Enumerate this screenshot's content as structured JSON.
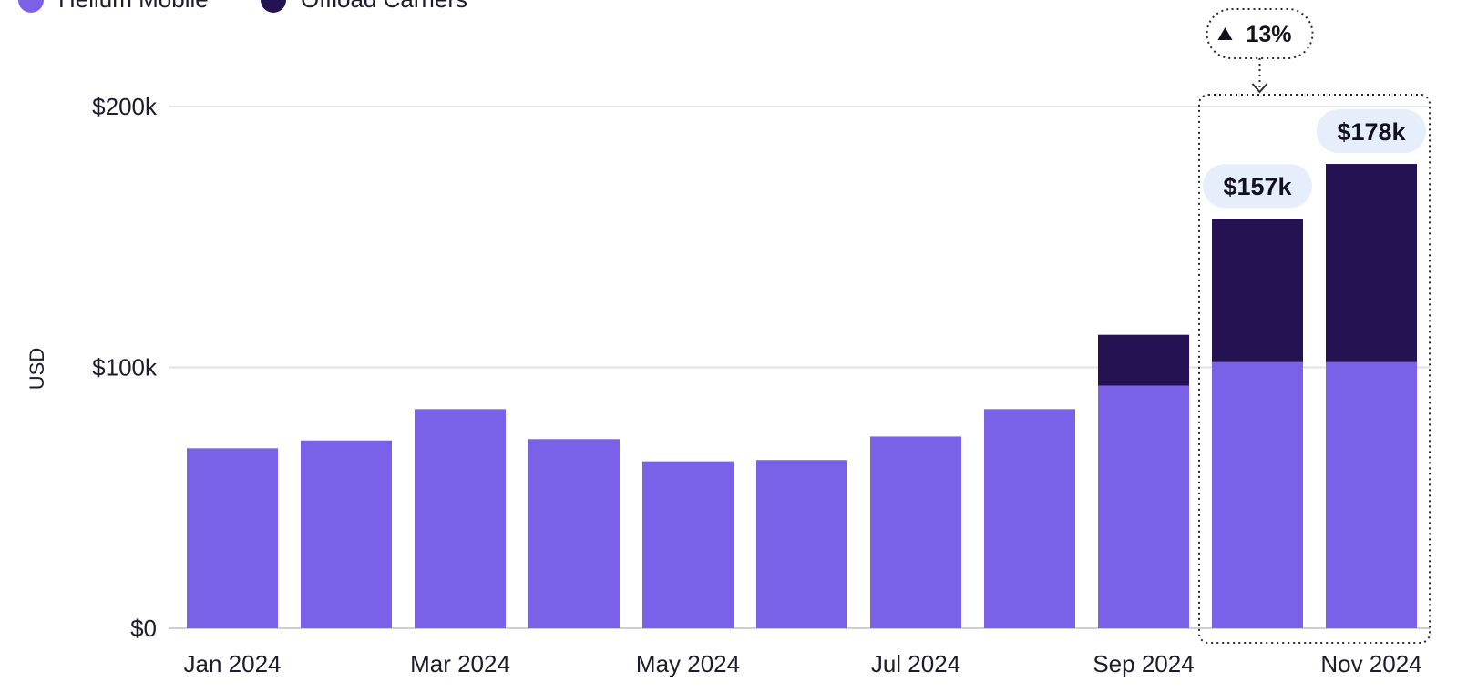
{
  "chart_data": {
    "type": "bar",
    "stacked": true,
    "categories": [
      "Jan 2024",
      "Feb 2024",
      "Mar 2024",
      "Apr 2024",
      "May 2024",
      "Jun 2024",
      "Jul 2024",
      "Aug 2024",
      "Sep 2024",
      "Oct 2024",
      "Nov 2024"
    ],
    "tick_labels": [
      "Jan 2024",
      "",
      "Mar 2024",
      "",
      "May 2024",
      "",
      "Jul 2024",
      "",
      "Sep 2024",
      "",
      "Nov 2024"
    ],
    "series": [
      {
        "name": "Helium Mobile",
        "color": "#7b61e8",
        "values": [
          69,
          72,
          84,
          72.5,
          64,
          64.5,
          73.5,
          84,
          93,
          102,
          102
        ]
      },
      {
        "name": "Offload Carriers",
        "color": "#241252",
        "values": [
          0,
          0,
          0,
          0,
          0,
          0,
          0,
          0,
          19.5,
          55,
          76
        ]
      }
    ],
    "ylabel": "USD",
    "ylim": [
      0,
      200
    ],
    "y_ticks": [
      {
        "value": 0,
        "label": "$0"
      },
      {
        "value": 100,
        "label": "$100k"
      },
      {
        "value": 200,
        "label": "$200k"
      }
    ],
    "grid": true,
    "legend_position": "top-left",
    "annotations": {
      "totals": [
        {
          "category": "Oct 2024",
          "label": "$157k"
        },
        {
          "category": "Nov 2024",
          "label": "$178k"
        }
      ],
      "change": {
        "label": "13%",
        "direction": "up",
        "from": "Oct 2024",
        "to": "Nov 2024"
      }
    }
  }
}
